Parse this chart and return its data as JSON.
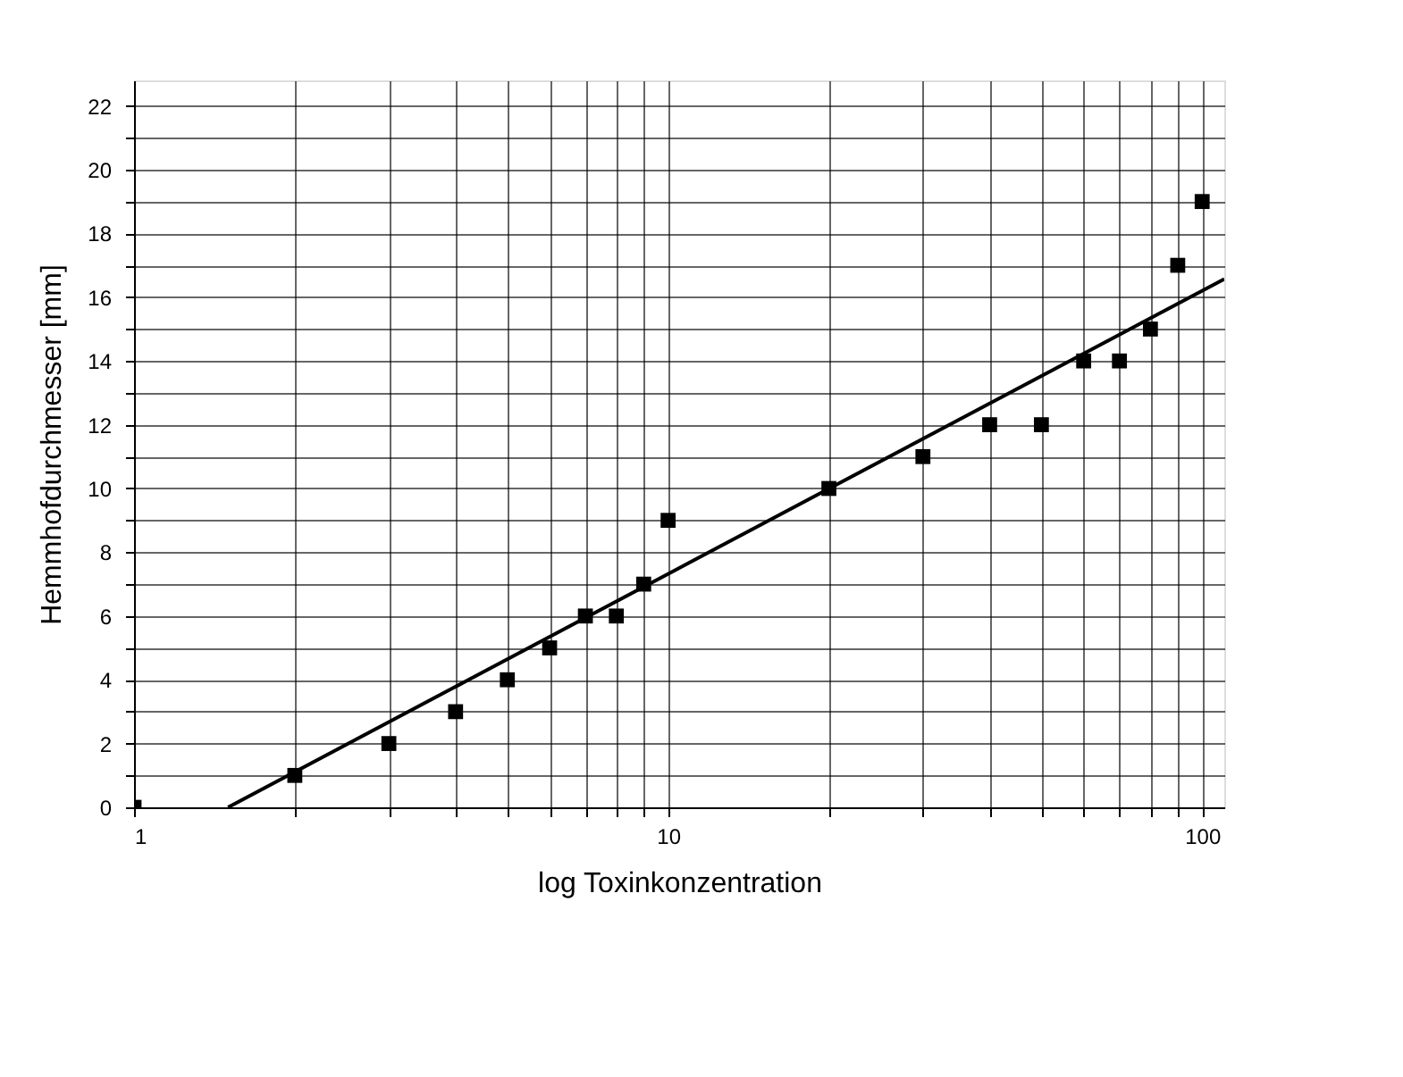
{
  "chart_data": {
    "type": "scatter",
    "xlabel": "log Toxinkonzentration",
    "ylabel": "Hemmhofdurchmesser [mm]",
    "log": "x",
    "grid": true,
    "marker": "square",
    "xlim": [
      1,
      110
    ],
    "ylim": [
      0,
      22.8
    ],
    "xticks": [
      1,
      {
        "value": 2,
        "label": null
      },
      {
        "value": 3,
        "label": null
      },
      {
        "value": 4,
        "label": null
      },
      {
        "value": 5,
        "label": null
      },
      {
        "value": 6,
        "label": null
      },
      {
        "value": 7,
        "label": null
      },
      {
        "value": 8,
        "label": null
      },
      {
        "value": 9,
        "label": null
      },
      10,
      {
        "value": 20,
        "label": null
      },
      {
        "value": 30,
        "label": null
      },
      {
        "value": 40,
        "label": null
      },
      {
        "value": 50,
        "label": null
      },
      {
        "value": 60,
        "label": null
      },
      {
        "value": 70,
        "label": null
      },
      {
        "value": 80,
        "label": null
      },
      {
        "value": 90,
        "label": null
      },
      100
    ],
    "yticks": [
      0,
      {
        "value": 1,
        "label": null
      },
      2,
      {
        "value": 3,
        "label": null
      },
      4,
      {
        "value": 5,
        "label": null
      },
      6,
      {
        "value": 7,
        "label": null
      },
      8,
      {
        "value": 9,
        "label": null
      },
      10,
      {
        "value": 11,
        "label": null
      },
      12,
      {
        "value": 13,
        "label": null
      },
      14,
      {
        "value": 15,
        "label": null
      },
      16,
      {
        "value": 17,
        "label": null
      },
      18,
      {
        "value": 19,
        "label": null
      },
      20,
      {
        "value": 21,
        "label": null
      },
      22
    ],
    "series": [
      {
        "type": "scatter",
        "color": "#000000",
        "x": [
          1,
          2,
          3,
          4,
          5,
          6,
          7,
          8,
          9,
          10,
          20,
          30,
          40,
          50,
          60,
          70,
          80,
          90,
          100
        ],
        "values": [
          0,
          1,
          2,
          3,
          4,
          5,
          6,
          6,
          7,
          9,
          10,
          11,
          12,
          12,
          14,
          14,
          15,
          17,
          19
        ]
      },
      {
        "type": "line",
        "color": "#000000",
        "marker": "none",
        "x": [
          1.5,
          110
        ],
        "values": [
          0,
          16.57
        ]
      }
    ]
  }
}
